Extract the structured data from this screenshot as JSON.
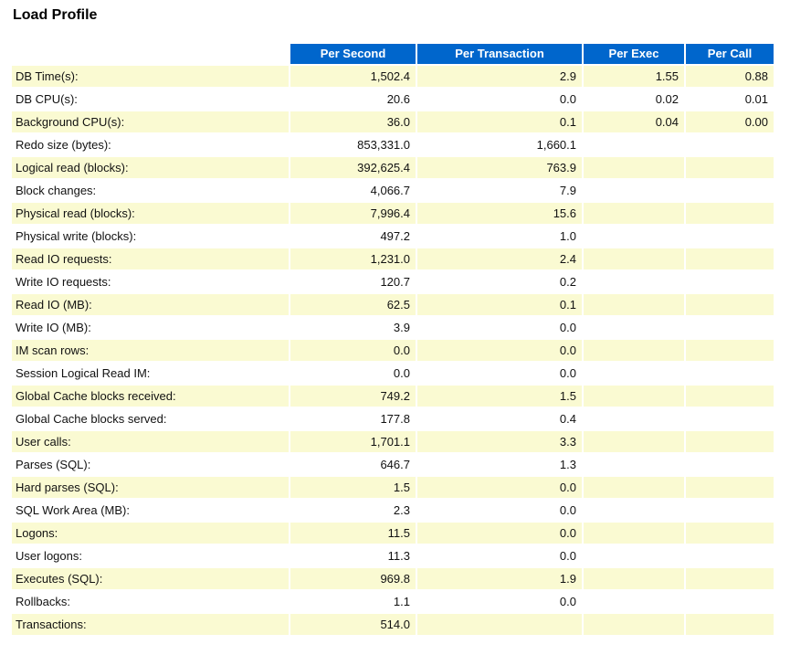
{
  "page": {
    "title": "Load Profile"
  },
  "colors": {
    "header_bg": "#0066CC",
    "header_text": "#FFFFFF",
    "row_highlight_bg": "#FAFAD2",
    "row_plain_bg": "#FFFFFF",
    "cell_text": "#111111"
  },
  "table": {
    "columns": [
      "Per Second",
      "Per Transaction",
      "Per Exec",
      "Per Call"
    ],
    "rows": [
      {
        "label": "DB Time(s):",
        "per_second": "1,502.4",
        "per_transaction": "2.9",
        "per_exec": "1.55",
        "per_call": "0.88"
      },
      {
        "label": "DB CPU(s):",
        "per_second": "20.6",
        "per_transaction": "0.0",
        "per_exec": "0.02",
        "per_call": "0.01"
      },
      {
        "label": "Background CPU(s):",
        "per_second": "36.0",
        "per_transaction": "0.1",
        "per_exec": "0.04",
        "per_call": "0.00"
      },
      {
        "label": "Redo size (bytes):",
        "per_second": "853,331.0",
        "per_transaction": "1,660.1",
        "per_exec": "",
        "per_call": ""
      },
      {
        "label": "Logical read (blocks):",
        "per_second": "392,625.4",
        "per_transaction": "763.9",
        "per_exec": "",
        "per_call": ""
      },
      {
        "label": "Block changes:",
        "per_second": "4,066.7",
        "per_transaction": "7.9",
        "per_exec": "",
        "per_call": ""
      },
      {
        "label": "Physical read (blocks):",
        "per_second": "7,996.4",
        "per_transaction": "15.6",
        "per_exec": "",
        "per_call": ""
      },
      {
        "label": "Physical write (blocks):",
        "per_second": "497.2",
        "per_transaction": "1.0",
        "per_exec": "",
        "per_call": ""
      },
      {
        "label": "Read IO requests:",
        "per_second": "1,231.0",
        "per_transaction": "2.4",
        "per_exec": "",
        "per_call": ""
      },
      {
        "label": "Write IO requests:",
        "per_second": "120.7",
        "per_transaction": "0.2",
        "per_exec": "",
        "per_call": ""
      },
      {
        "label": "Read IO (MB):",
        "per_second": "62.5",
        "per_transaction": "0.1",
        "per_exec": "",
        "per_call": ""
      },
      {
        "label": "Write IO (MB):",
        "per_second": "3.9",
        "per_transaction": "0.0",
        "per_exec": "",
        "per_call": ""
      },
      {
        "label": "IM scan rows:",
        "per_second": "0.0",
        "per_transaction": "0.0",
        "per_exec": "",
        "per_call": ""
      },
      {
        "label": "Session Logical Read IM:",
        "per_second": "0.0",
        "per_transaction": "0.0",
        "per_exec": "",
        "per_call": ""
      },
      {
        "label": "Global Cache blocks received:",
        "per_second": "749.2",
        "per_transaction": "1.5",
        "per_exec": "",
        "per_call": ""
      },
      {
        "label": "Global Cache blocks served:",
        "per_second": "177.8",
        "per_transaction": "0.4",
        "per_exec": "",
        "per_call": ""
      },
      {
        "label": "User calls:",
        "per_second": "1,701.1",
        "per_transaction": "3.3",
        "per_exec": "",
        "per_call": ""
      },
      {
        "label": "Parses (SQL):",
        "per_second": "646.7",
        "per_transaction": "1.3",
        "per_exec": "",
        "per_call": ""
      },
      {
        "label": "Hard parses (SQL):",
        "per_second": "1.5",
        "per_transaction": "0.0",
        "per_exec": "",
        "per_call": ""
      },
      {
        "label": "SQL Work Area (MB):",
        "per_second": "2.3",
        "per_transaction": "0.0",
        "per_exec": "",
        "per_call": ""
      },
      {
        "label": "Logons:",
        "per_second": "11.5",
        "per_transaction": "0.0",
        "per_exec": "",
        "per_call": ""
      },
      {
        "label": "User logons:",
        "per_second": "11.3",
        "per_transaction": "0.0",
        "per_exec": "",
        "per_call": ""
      },
      {
        "label": "Executes (SQL):",
        "per_second": "969.8",
        "per_transaction": "1.9",
        "per_exec": "",
        "per_call": ""
      },
      {
        "label": "Rollbacks:",
        "per_second": "1.1",
        "per_transaction": "0.0",
        "per_exec": "",
        "per_call": ""
      },
      {
        "label": "Transactions:",
        "per_second": "514.0",
        "per_transaction": "",
        "per_exec": "",
        "per_call": ""
      }
    ]
  }
}
